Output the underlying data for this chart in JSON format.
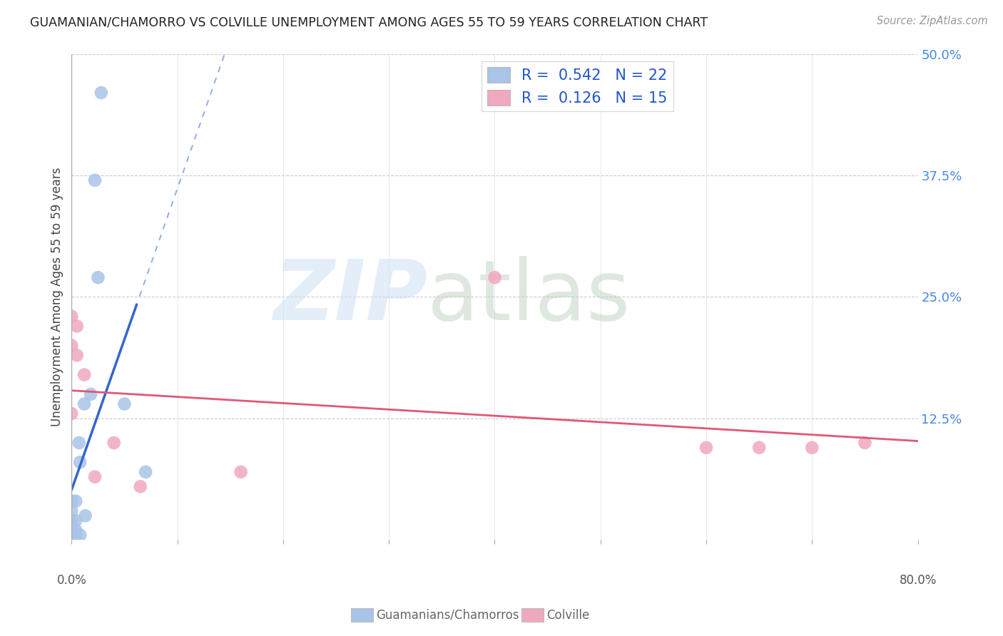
{
  "title": "GUAMANIAN/CHAMORRO VS COLVILLE UNEMPLOYMENT AMONG AGES 55 TO 59 YEARS CORRELATION CHART",
  "source": "Source: ZipAtlas.com",
  "ylabel": "Unemployment Among Ages 55 to 59 years",
  "xlim": [
    0.0,
    0.8
  ],
  "ylim": [
    0.0,
    0.5
  ],
  "yticks": [
    0.0,
    0.125,
    0.25,
    0.375,
    0.5
  ],
  "ytick_labels": [
    "",
    "12.5%",
    "25.0%",
    "37.5%",
    "50.0%"
  ],
  "xticks": [
    0.0,
    0.1,
    0.2,
    0.3,
    0.4,
    0.5,
    0.6,
    0.7,
    0.8
  ],
  "blue_color": "#a8c4e8",
  "pink_color": "#f0a8be",
  "blue_line_color": "#3366cc",
  "pink_line_color": "#e05878",
  "legend_R1": "0.542",
  "legend_N1": "22",
  "legend_R2": "0.126",
  "legend_N2": "15",
  "guamanian_x": [
    0.0,
    0.0,
    0.0,
    0.0,
    0.0,
    0.0,
    0.004,
    0.004,
    0.004,
    0.004,
    0.004,
    0.007,
    0.008,
    0.008,
    0.012,
    0.013,
    0.018,
    0.022,
    0.025,
    0.028,
    0.05,
    0.07
  ],
  "guamanian_y": [
    0.005,
    0.01,
    0.015,
    0.02,
    0.03,
    0.04,
    0.0,
    0.005,
    0.01,
    0.02,
    0.04,
    0.1,
    0.005,
    0.08,
    0.14,
    0.025,
    0.15,
    0.37,
    0.27,
    0.46,
    0.14,
    0.07
  ],
  "colville_x": [
    0.0,
    0.0,
    0.0,
    0.005,
    0.005,
    0.012,
    0.022,
    0.04,
    0.065,
    0.16,
    0.4,
    0.6,
    0.65,
    0.7,
    0.75
  ],
  "colville_y": [
    0.13,
    0.2,
    0.23,
    0.19,
    0.22,
    0.17,
    0.065,
    0.1,
    0.055,
    0.07,
    0.27,
    0.095,
    0.095,
    0.095,
    0.1
  ]
}
